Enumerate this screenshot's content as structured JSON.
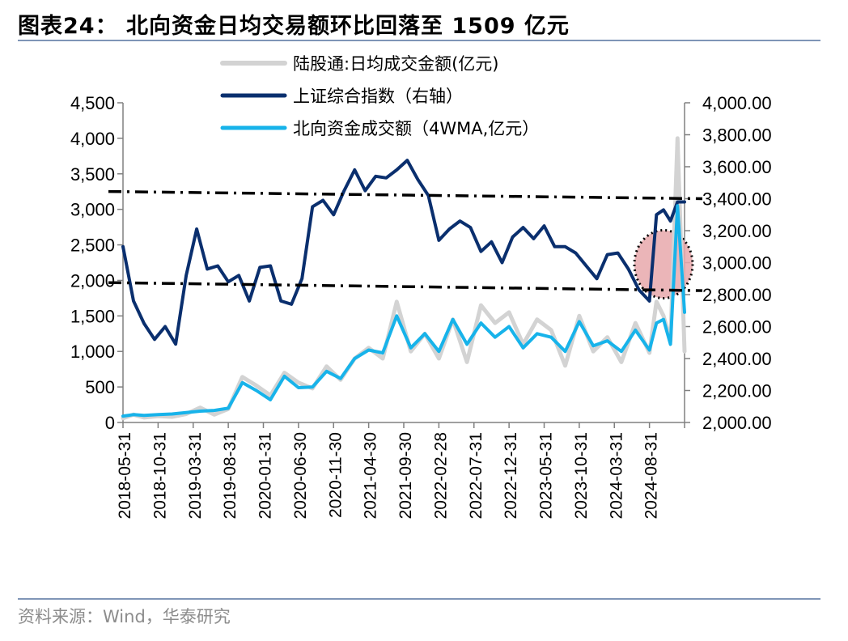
{
  "figure": {
    "title": "图表24：  北向资金日均交易额环比回落至 1509 亿元",
    "source": "资料来源：Wind，华泰研究"
  },
  "chart_data": {
    "type": "line",
    "x_ticks": [
      "2018-05-31",
      "2018-10-31",
      "2019-03-31",
      "2019-08-31",
      "2020-01-31",
      "2020-06-30",
      "2020-11-30",
      "2021-04-30",
      "2021-09-30",
      "2022-02-28",
      "2022-07-31",
      "2022-12-31",
      "2023-05-31",
      "2023-10-31",
      "2024-03-31",
      "2024-08-31"
    ],
    "y_left": {
      "min": 0,
      "max": 4500,
      "ticks": [
        "0",
        "500",
        "1,000",
        "1,500",
        "2,000",
        "2,500",
        "3,000",
        "3,500",
        "4,000",
        "4,500"
      ]
    },
    "y_right": {
      "min": 2000,
      "max": 4000,
      "ticks": [
        "2,000.00",
        "2,200.00",
        "2,400.00",
        "2,600.00",
        "2,800.00",
        "3,000.00",
        "3,200.00",
        "3,400.00",
        "3,600.00",
        "3,800.00",
        "4,000.00"
      ]
    },
    "legend_position": "top-center",
    "series": [
      {
        "name": "陆股通:日均成交金额(亿元)",
        "axis": "left",
        "color": "#d3d3d3",
        "style": "solid-thick",
        "x": [
          0,
          0.3,
          0.6,
          1,
          1.4,
          1.8,
          2.2,
          2.6,
          3,
          3.4,
          3.8,
          4.2,
          4.6,
          5,
          5.4,
          5.8,
          6.2,
          6.6,
          7,
          7.4,
          7.8,
          8.2,
          8.6,
          9,
          9.4,
          9.8,
          10.2,
          10.6,
          11,
          11.4,
          11.8,
          12.2,
          12.6,
          13,
          13.4,
          13.8,
          14.2,
          14.6,
          15,
          15.2,
          15.4,
          15.6,
          15.8,
          16
        ],
        "values": [
          60,
          110,
          70,
          90,
          80,
          120,
          210,
          110,
          190,
          640,
          520,
          380,
          700,
          560,
          480,
          790,
          600,
          900,
          1050,
          900,
          1700,
          1000,
          1250,
          900,
          1450,
          850,
          1650,
          1400,
          1550,
          1100,
          1450,
          1300,
          800,
          1500,
          1000,
          1200,
          850,
          1400,
          980,
          1700,
          1500,
          1150,
          4000,
          1000
        ]
      },
      {
        "name": "上证综合指数（右轴）",
        "axis": "right",
        "color": "#0a2f6e",
        "style": "solid-thick",
        "x": [
          0,
          0.3,
          0.6,
          0.9,
          1.2,
          1.5,
          1.8,
          2.1,
          2.4,
          2.7,
          3,
          3.3,
          3.6,
          3.9,
          4.2,
          4.5,
          4.8,
          5.1,
          5.4,
          5.7,
          6,
          6.3,
          6.6,
          6.9,
          7.2,
          7.5,
          7.8,
          8.1,
          8.4,
          8.7,
          9,
          9.3,
          9.6,
          9.9,
          10.2,
          10.5,
          10.8,
          11.1,
          11.4,
          11.7,
          12,
          12.3,
          12.6,
          12.9,
          13.2,
          13.5,
          13.8,
          14.1,
          14.4,
          14.7,
          15,
          15.2,
          15.4,
          15.6,
          15.8,
          16
        ],
        "values": [
          3100,
          2760,
          2620,
          2520,
          2600,
          2490,
          2920,
          3210,
          2960,
          2980,
          2880,
          2920,
          2760,
          2970,
          2980,
          2760,
          2740,
          2900,
          3350,
          3390,
          3300,
          3450,
          3580,
          3450,
          3540,
          3530,
          3580,
          3640,
          3520,
          3420,
          3140,
          3210,
          3260,
          3220,
          3070,
          3130,
          3000,
          3160,
          3220,
          3150,
          3230,
          3100,
          3100,
          3060,
          2980,
          2900,
          3050,
          3060,
          2960,
          2830,
          2760,
          3300,
          3330,
          3260,
          3380,
          3380
        ]
      },
      {
        "name": "北向资金成交额（4WMA,亿元）",
        "axis": "left",
        "color": "#17b3ea",
        "style": "solid-thick",
        "x": [
          0,
          0.3,
          0.6,
          1,
          1.4,
          1.8,
          2.2,
          2.6,
          3,
          3.4,
          3.8,
          4.2,
          4.6,
          5,
          5.4,
          5.8,
          6.2,
          6.6,
          7,
          7.4,
          7.8,
          8.2,
          8.6,
          9,
          9.4,
          9.8,
          10.2,
          10.6,
          11,
          11.4,
          11.8,
          12.2,
          12.6,
          13,
          13.4,
          13.8,
          14.2,
          14.6,
          15,
          15.2,
          15.4,
          15.6,
          15.8,
          16
        ],
        "values": [
          90,
          110,
          100,
          110,
          120,
          140,
          160,
          170,
          200,
          560,
          450,
          320,
          650,
          490,
          500,
          720,
          620,
          900,
          1020,
          980,
          1500,
          1050,
          1250,
          1000,
          1450,
          1100,
          1400,
          1200,
          1350,
          1050,
          1250,
          1200,
          1000,
          1420,
          1080,
          1150,
          1000,
          1300,
          1020,
          1400,
          1450,
          1100,
          3050,
          1550
        ]
      }
    ],
    "reference_lines": [
      {
        "axis": "right",
        "from": 3445,
        "to": 3400,
        "style": "dash-dot",
        "color": "#000000"
      },
      {
        "axis": "right",
        "from": 2875,
        "to": 2825,
        "style": "dash-dot",
        "color": "#000000"
      }
    ],
    "highlight": {
      "type": "ellipse",
      "fill": "#e8a8ac",
      "border": "dotted",
      "x_index": 15.4,
      "y_right": 2990
    }
  }
}
